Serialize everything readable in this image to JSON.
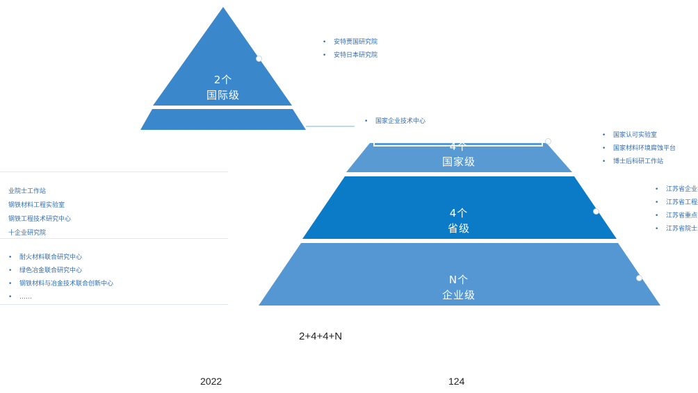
{
  "tiers": [
    {
      "count": "2个",
      "level": "国际级",
      "color": "#3a87cc",
      "items": [
        "安特贾国研究院",
        "安特日本研究院"
      ]
    },
    {
      "count": "4个",
      "level": "国家级",
      "color": "#5a9ad3",
      "items": [
        "国家认可实验室",
        "国家材料环境腐蚀平台",
        "博士后科研工作站"
      ]
    },
    {
      "count": "4个",
      "level": "省级",
      "color": "#0b7ac7",
      "items": [
        "江苏省企业技术中心",
        "江苏省工程技术研究中心",
        "江苏省重点实验室",
        "江苏省院士工作站"
      ]
    },
    {
      "count": "N个",
      "level": "企业级",
      "color": "#5597d2",
      "items": []
    }
  ],
  "national_callout": "国家企业技术中心",
  "left_list_top": [
    "业院士工作站",
    "钢铁材料工程实验室",
    "钢铁工程技术研究中心",
    "十企业研究院"
  ],
  "left_list_bottom": [
    "耐火材料联合研究中心",
    "绿色冶金联合研究中心",
    "钢铁材料与冶金技术联合创新中心",
    "……"
  ],
  "formula": "2+4+4+N",
  "footer_year": "2022",
  "footer_number": "124"
}
